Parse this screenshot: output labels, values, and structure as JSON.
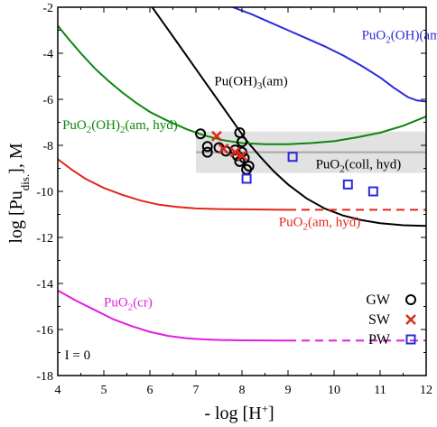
{
  "chart_data": {
    "type": "line",
    "title": "",
    "xlabel": {
      "main": "- log [H",
      "sup": "+",
      "tail": "]"
    },
    "ylabel": {
      "main": "log [Pu",
      "sub": "dis.",
      "tail": "], M"
    },
    "xlim": [
      4,
      12
    ],
    "ylim": [
      -18,
      -2
    ],
    "x_ticks": [
      4,
      5,
      6,
      7,
      8,
      9,
      10,
      11,
      12
    ],
    "x_tick_labels": [
      "4",
      "5",
      "6",
      "7",
      "8",
      "9",
      "10",
      "11",
      "12"
    ],
    "y_ticks": [
      -18,
      -16,
      -14,
      -12,
      -10,
      -8,
      -6,
      -4,
      -2
    ],
    "y_tick_labels": [
      "-18",
      "-16",
      "-14",
      "-12",
      "-10",
      "-8",
      "-6",
      "-4",
      "-2"
    ],
    "grid": false,
    "legend_position": "bottom-right",
    "series": [
      {
        "key": "puo2oh_am",
        "color": "#2b2bdc",
        "label": {
          "parts": [
            [
              "PuO",
              "n"
            ],
            [
              "2",
              "sub"
            ],
            [
              "(OH)(am)",
              "n"
            ]
          ]
        },
        "label_at": [
          10.6,
          -3.4
        ],
        "points": [
          [
            7.8,
            -2.0
          ],
          [
            8.2,
            -2.3
          ],
          [
            8.6,
            -2.65
          ],
          [
            9.0,
            -3.0
          ],
          [
            9.4,
            -3.35
          ],
          [
            9.8,
            -3.7
          ],
          [
            10.2,
            -4.1
          ],
          [
            10.6,
            -4.55
          ],
          [
            11.0,
            -5.05
          ],
          [
            11.3,
            -5.5
          ],
          [
            11.6,
            -5.9
          ],
          [
            11.8,
            -6.05
          ],
          [
            12.0,
            -6.1
          ]
        ]
      },
      {
        "key": "puoh3_am",
        "color": "#000000",
        "label": {
          "parts": [
            [
              "Pu(OH)",
              "n"
            ],
            [
              "3",
              "sub"
            ],
            [
              "(am)",
              "n"
            ]
          ]
        },
        "label_at": [
          7.4,
          -5.4
        ],
        "points": [
          [
            6.05,
            -2.0
          ],
          [
            6.3,
            -2.7
          ],
          [
            6.6,
            -3.55
          ],
          [
            6.9,
            -4.4
          ],
          [
            7.2,
            -5.25
          ],
          [
            7.5,
            -6.1
          ],
          [
            7.8,
            -6.95
          ],
          [
            8.1,
            -7.8
          ],
          [
            8.4,
            -8.5
          ],
          [
            8.7,
            -9.15
          ],
          [
            9.0,
            -9.7
          ],
          [
            9.4,
            -10.3
          ],
          [
            9.8,
            -10.75
          ],
          [
            10.2,
            -11.05
          ],
          [
            10.6,
            -11.25
          ],
          [
            11.0,
            -11.38
          ],
          [
            11.5,
            -11.47
          ],
          [
            12.0,
            -11.5
          ]
        ]
      },
      {
        "key": "puo2oh2_am_hyd",
        "color": "#0a870a",
        "label": {
          "parts": [
            [
              "PuO",
              "n"
            ],
            [
              "2",
              "sub"
            ],
            [
              "(OH)",
              "n"
            ],
            [
              "2",
              "sub"
            ],
            [
              "(am, hyd)",
              "n"
            ]
          ]
        },
        "label_at": [
          4.1,
          -7.3
        ],
        "points": [
          [
            4.0,
            -2.8
          ],
          [
            4.2,
            -3.3
          ],
          [
            4.5,
            -4.0
          ],
          [
            4.8,
            -4.65
          ],
          [
            5.1,
            -5.2
          ],
          [
            5.4,
            -5.7
          ],
          [
            5.7,
            -6.15
          ],
          [
            6.0,
            -6.55
          ],
          [
            6.4,
            -6.95
          ],
          [
            6.8,
            -7.3
          ],
          [
            7.2,
            -7.58
          ],
          [
            7.6,
            -7.78
          ],
          [
            8.0,
            -7.9
          ],
          [
            8.5,
            -7.95
          ],
          [
            9.0,
            -7.95
          ],
          [
            9.5,
            -7.9
          ],
          [
            10.0,
            -7.82
          ],
          [
            10.5,
            -7.65
          ],
          [
            11.0,
            -7.45
          ],
          [
            11.5,
            -7.15
          ],
          [
            12.0,
            -6.75
          ]
        ]
      },
      {
        "key": "puo2_am_hyd",
        "color": "#e0281a",
        "label": {
          "parts": [
            [
              "PuO",
              "n"
            ],
            [
              "2",
              "sub"
            ],
            [
              "(am, hyd)",
              "n"
            ]
          ]
        },
        "label_at": [
          8.8,
          -11.5
        ],
        "points": [
          [
            4.0,
            -8.6
          ],
          [
            4.3,
            -9.05
          ],
          [
            4.6,
            -9.45
          ],
          [
            5.0,
            -9.85
          ],
          [
            5.4,
            -10.15
          ],
          [
            5.8,
            -10.4
          ],
          [
            6.2,
            -10.58
          ],
          [
            6.6,
            -10.68
          ],
          [
            7.0,
            -10.74
          ],
          [
            7.5,
            -10.77
          ],
          [
            8.0,
            -10.78
          ],
          [
            9.0,
            -10.8
          ]
        ],
        "dashed_points": [
          [
            9.0,
            -10.8
          ],
          [
            12.0,
            -10.8
          ]
        ]
      },
      {
        "key": "puo2_cr",
        "color": "#e01ee0",
        "label": {
          "parts": [
            [
              "PuO",
              "n"
            ],
            [
              "2",
              "sub"
            ],
            [
              "(cr)",
              "n"
            ]
          ]
        },
        "label_at": [
          5.0,
          -15.0
        ],
        "points": [
          [
            4.0,
            -14.3
          ],
          [
            4.4,
            -14.75
          ],
          [
            4.8,
            -15.15
          ],
          [
            5.2,
            -15.55
          ],
          [
            5.6,
            -15.85
          ],
          [
            6.0,
            -16.1
          ],
          [
            6.4,
            -16.28
          ],
          [
            6.8,
            -16.38
          ],
          [
            7.2,
            -16.43
          ],
          [
            7.6,
            -16.46
          ],
          [
            8.0,
            -16.47
          ],
          [
            9.0,
            -16.48
          ]
        ],
        "dashed_points": [
          [
            9.0,
            -16.48
          ],
          [
            12.0,
            -16.48
          ]
        ]
      }
    ],
    "colloid_band": {
      "label": {
        "parts": [
          [
            "PuO",
            "n"
          ],
          [
            "2",
            "sub"
          ],
          [
            "(coll, hyd)",
            "n"
          ]
        ]
      },
      "label_at": [
        9.6,
        -9.0
      ],
      "x": [
        7.0,
        12.0
      ],
      "y": [
        -9.2,
        -7.4
      ],
      "center_y": -8.3,
      "fill": "#e2e2e2",
      "line_color": "#a8a8a8"
    },
    "scatter": [
      {
        "name": "GW",
        "marker": "circle",
        "color": "#000000",
        "points": [
          [
            7.1,
            -7.5
          ],
          [
            7.25,
            -8.05
          ],
          [
            7.25,
            -8.3
          ],
          [
            7.5,
            -8.1
          ],
          [
            7.65,
            -8.25
          ],
          [
            7.85,
            -8.2
          ],
          [
            7.9,
            -8.45
          ],
          [
            7.95,
            -7.45
          ],
          [
            8.0,
            -7.85
          ],
          [
            8.0,
            -8.3
          ],
          [
            7.95,
            -8.7
          ],
          [
            8.05,
            -8.55
          ],
          [
            8.1,
            -9.05
          ],
          [
            8.15,
            -8.9
          ]
        ]
      },
      {
        "name": "SW",
        "marker": "x",
        "color": "#e0281a",
        "points": [
          [
            7.45,
            -7.6
          ],
          [
            7.6,
            -8.15
          ],
          [
            7.85,
            -8.3
          ],
          [
            8.0,
            -8.45
          ]
        ]
      },
      {
        "name": "PW",
        "marker": "square",
        "color": "#2b2bdc",
        "points": [
          [
            8.1,
            -9.45
          ],
          [
            9.1,
            -8.5
          ],
          [
            10.3,
            -9.7
          ],
          [
            10.85,
            -10.0
          ]
        ]
      }
    ],
    "annotation": "I = 0",
    "annotation_at": [
      4.15,
      -17.3
    ]
  }
}
